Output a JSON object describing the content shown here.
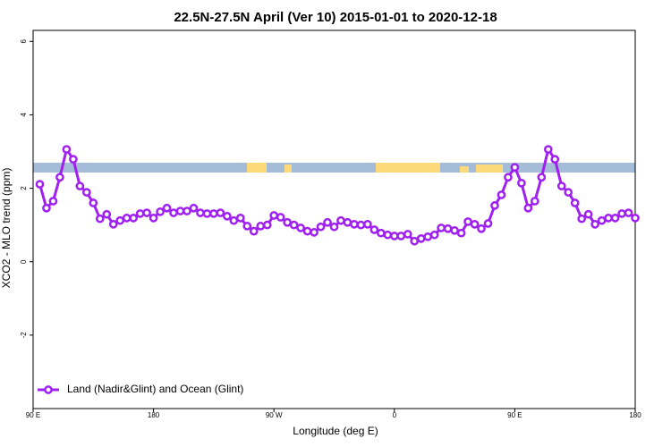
{
  "chart_data": {
    "type": "line",
    "title": "22.5N-27.5N April (Ver 10)   2015-01-01 to 2020-12-18",
    "xlabel": "Longitude (deg E)",
    "ylabel": "XCO2 - MLO trend (ppm)",
    "x": [
      95,
      100,
      105,
      110,
      115,
      120,
      125,
      130,
      135,
      140,
      145,
      150,
      155,
      160,
      165,
      170,
      175,
      180,
      185,
      190,
      195,
      200,
      205,
      210,
      215,
      220,
      225,
      230,
      235,
      240,
      245,
      250,
      255,
      260,
      265,
      270,
      275,
      280,
      285,
      290,
      295,
      300,
      305,
      310,
      315,
      320,
      325,
      330,
      335,
      340,
      345,
      350,
      355,
      360,
      365,
      370,
      375,
      380,
      385,
      390,
      395,
      400,
      405,
      410,
      415,
      420,
      425,
      430,
      435,
      440,
      445,
      450,
      455,
      460,
      465,
      470,
      475,
      480,
      485,
      490,
      495,
      500,
      505,
      510,
      515,
      520,
      525,
      530,
      535,
      540
    ],
    "series": [
      {
        "name": "Land (Nadir&Glint) and Ocean (Glint)",
        "color": "#a020f0",
        "values": [
          2.11,
          1.46,
          1.65,
          2.3,
          3.06,
          2.79,
          2.06,
          1.89,
          1.6,
          1.17,
          1.29,
          1.02,
          1.12,
          1.19,
          1.19,
          1.31,
          1.33,
          1.19,
          1.36,
          1.46,
          1.33,
          1.38,
          1.38,
          1.46,
          1.33,
          1.31,
          1.31,
          1.33,
          1.24,
          1.12,
          1.19,
          0.97,
          0.83,
          0.97,
          1.0,
          1.26,
          1.21,
          1.07,
          1.0,
          0.92,
          0.83,
          0.8,
          0.95,
          1.07,
          0.95,
          1.12,
          1.07,
          1.02,
          1.0,
          1.02,
          0.87,
          0.78,
          0.73,
          0.7,
          0.7,
          0.75,
          0.56,
          0.63,
          0.68,
          0.73,
          0.92,
          0.9,
          0.85,
          0.78,
          1.09,
          1.02,
          0.9,
          1.04,
          1.53,
          1.82,
          2.3,
          2.57,
          2.14,
          1.46,
          1.65,
          2.3,
          3.06,
          2.79,
          2.06,
          1.89,
          1.6,
          1.17,
          1.29,
          1.02,
          1.12,
          1.19,
          1.19,
          1.31,
          1.33,
          1.19
        ]
      }
    ],
    "xlim": [
      90,
      540
    ],
    "xticks": [
      {
        "value": 90,
        "label": "90 E"
      },
      {
        "value": 180,
        "label": "180"
      },
      {
        "value": 270,
        "label": "90 W"
      },
      {
        "value": 360,
        "label": "0"
      },
      {
        "value": 450,
        "label": "90 E"
      },
      {
        "value": 540,
        "label": "180"
      }
    ],
    "ylim": [
      -4,
      6.3
    ],
    "yticks": [
      -2,
      0,
      2,
      4,
      6
    ],
    "legend": "bottom-left"
  }
}
